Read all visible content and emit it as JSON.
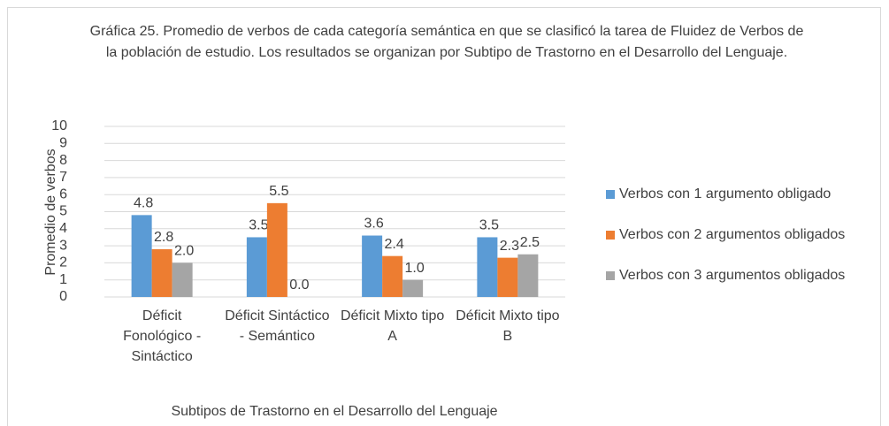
{
  "chart_data": {
    "type": "bar",
    "title": "Gráfica 25. Promedio de verbos de cada categoría semántica en que se clasificó la tarea de Fluidez de Verbos de la población de estudio. Los resultados se organizan por Subtipo de Trastorno en el Desarrollo del Lenguaje.",
    "x_label": "Subtipos de Trastorno en el Desarrollo del Lenguaje",
    "y_label": "Promedio de verbos",
    "categories": [
      "Déficit Fonológico - Sintáctico",
      "Déficit Sintáctico - Semántico",
      "Déficit Mixto tipo A",
      "Déficit Mixto tipo B"
    ],
    "series": [
      {
        "name": "Verbos con 1 argumento obligado",
        "color": "#5b9bd5",
        "values": [
          4.8,
          3.5,
          3.6,
          3.5
        ],
        "value_labels": [
          "4.8",
          "3.5",
          "3.6",
          "3.5"
        ]
      },
      {
        "name": "Verbos con 2 argumentos obligados",
        "color": "#ed7d31",
        "values": [
          2.8,
          5.5,
          2.4,
          2.3
        ],
        "value_labels": [
          "2.8",
          "5.5",
          "2.4",
          "2.3"
        ]
      },
      {
        "name": "Verbos con 3 argumentos obligados",
        "color": "#a5a5a5",
        "values": [
          2.0,
          0.0,
          1.0,
          2.5
        ],
        "value_labels": [
          "2.0",
          "0.0",
          "1.0",
          "2.5"
        ]
      }
    ],
    "ylim": [
      0,
      10
    ],
    "yticks": [
      0,
      1,
      2,
      3,
      4,
      5,
      6,
      7,
      8,
      9,
      10
    ],
    "grid": true,
    "legend": "right"
  }
}
